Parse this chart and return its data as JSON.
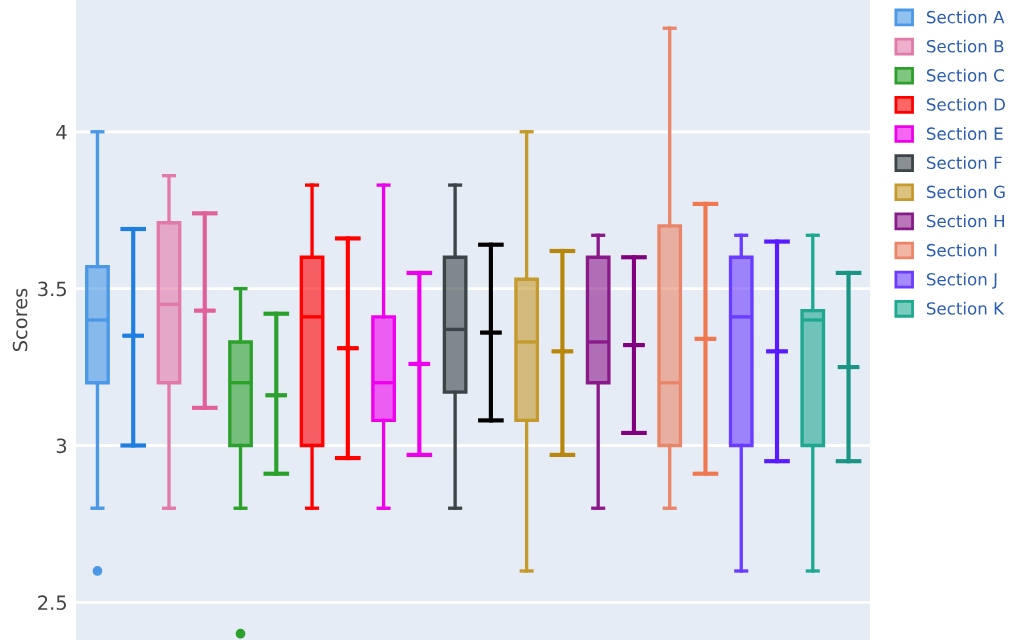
{
  "chart_data": {
    "type": "box",
    "ylabel": "Scores",
    "ylim": [
      2.38,
      4.42
    ],
    "yticks": [
      2.5,
      3,
      3.5,
      4
    ],
    "grid": "y",
    "legend": "top right",
    "categories": [
      null,
      null,
      null,
      null,
      null,
      null,
      null,
      null,
      null,
      null,
      null,
      null,
      null,
      null,
      null,
      null,
      null,
      null,
      null,
      null,
      null,
      null
    ],
    "series": [
      {
        "name": "Section A",
        "color": "#4a98e6",
        "boxes": [
          {
            "low": 2.8,
            "q1": 3.2,
            "median": 3.4,
            "q3": 3.57,
            "high": 4.0,
            "outliers": [
              2.6
            ]
          },
          null,
          null,
          null,
          null,
          null,
          null,
          null,
          null,
          null,
          null,
          null,
          null,
          null,
          null,
          null,
          null,
          null,
          null,
          null,
          null,
          null
        ]
      },
      {
        "color": "#1f7fe0",
        "boxes": [
          null,
          {
            "low": 3.0,
            "q1": 3.35,
            "median": 3.35,
            "q3": 3.35,
            "high": 3.69
          },
          null,
          null,
          null,
          null,
          null,
          null,
          null,
          null,
          null,
          null,
          null,
          null,
          null,
          null,
          null,
          null,
          null,
          null,
          null,
          null
        ]
      },
      {
        "name": "Section B",
        "color": "#e27aa9",
        "boxes": [
          null,
          null,
          {
            "low": 2.8,
            "q1": 3.2,
            "median": 3.45,
            "q3": 3.71,
            "high": 3.86
          },
          null,
          null,
          null,
          null,
          null,
          null,
          null,
          null,
          null,
          null,
          null,
          null,
          null,
          null,
          null,
          null,
          null,
          null,
          null
        ]
      },
      {
        "color": "#e0609a",
        "boxes": [
          null,
          null,
          null,
          {
            "low": 3.12,
            "q1": 3.43,
            "median": 3.43,
            "q3": 3.43,
            "high": 3.74
          },
          null,
          null,
          null,
          null,
          null,
          null,
          null,
          null,
          null,
          null,
          null,
          null,
          null,
          null,
          null,
          null,
          null,
          null
        ]
      },
      {
        "name": "Section C",
        "color": "#2ca02c",
        "boxes": [
          null,
          null,
          null,
          null,
          {
            "low": 2.8,
            "q1": 3.0,
            "median": 3.2,
            "q3": 3.33,
            "high": 3.5,
            "outliers": [
              2.4
            ]
          },
          null,
          null,
          null,
          null,
          null,
          null,
          null,
          null,
          null,
          null,
          null,
          null,
          null,
          null,
          null,
          null,
          null
        ]
      },
      {
        "color": "#2ca02c",
        "boxes": [
          null,
          null,
          null,
          null,
          null,
          {
            "low": 2.91,
            "q1": 3.16,
            "median": 3.16,
            "q3": 3.16,
            "high": 3.42
          },
          null,
          null,
          null,
          null,
          null,
          null,
          null,
          null,
          null,
          null,
          null,
          null,
          null,
          null,
          null,
          null
        ]
      },
      {
        "name": "Section D",
        "color": "#ff0000",
        "boxes": [
          null,
          null,
          null,
          null,
          null,
          null,
          {
            "low": 2.8,
            "q1": 3.0,
            "median": 3.41,
            "q3": 3.6,
            "high": 3.83
          },
          null,
          null,
          null,
          null,
          null,
          null,
          null,
          null,
          null,
          null,
          null,
          null,
          null,
          null,
          null
        ]
      },
      {
        "color": "#ff0000",
        "boxes": [
          null,
          null,
          null,
          null,
          null,
          null,
          null,
          {
            "low": 2.96,
            "q1": 3.31,
            "median": 3.31,
            "q3": 3.31,
            "high": 3.66
          },
          null,
          null,
          null,
          null,
          null,
          null,
          null,
          null,
          null,
          null,
          null,
          null,
          null,
          null
        ]
      },
      {
        "name": "Section E",
        "color": "#ee00ee",
        "boxes": [
          null,
          null,
          null,
          null,
          null,
          null,
          null,
          null,
          {
            "low": 2.8,
            "q1": 3.08,
            "median": 3.2,
            "q3": 3.41,
            "high": 3.83
          },
          null,
          null,
          null,
          null,
          null,
          null,
          null,
          null,
          null,
          null,
          null,
          null,
          null
        ]
      },
      {
        "color": "#ee00ee",
        "boxes": [
          null,
          null,
          null,
          null,
          null,
          null,
          null,
          null,
          null,
          {
            "low": 2.97,
            "q1": 3.26,
            "median": 3.26,
            "q3": 3.26,
            "high": 3.55
          },
          null,
          null,
          null,
          null,
          null,
          null,
          null,
          null,
          null,
          null,
          null,
          null
        ]
      },
      {
        "name": "Section F",
        "color": "#3c4448",
        "boxes": [
          null,
          null,
          null,
          null,
          null,
          null,
          null,
          null,
          null,
          null,
          {
            "low": 2.8,
            "q1": 3.17,
            "median": 3.37,
            "q3": 3.6,
            "high": 3.83
          },
          null,
          null,
          null,
          null,
          null,
          null,
          null,
          null,
          null,
          null,
          null
        ]
      },
      {
        "color": "#000000",
        "boxes": [
          null,
          null,
          null,
          null,
          null,
          null,
          null,
          null,
          null,
          null,
          null,
          {
            "low": 3.08,
            "q1": 3.36,
            "median": 3.36,
            "q3": 3.36,
            "high": 3.64
          },
          null,
          null,
          null,
          null,
          null,
          null,
          null,
          null,
          null,
          null
        ]
      },
      {
        "name": "Section G",
        "color": "#c49a2c",
        "boxes": [
          null,
          null,
          null,
          null,
          null,
          null,
          null,
          null,
          null,
          null,
          null,
          null,
          {
            "low": 2.6,
            "q1": 3.08,
            "median": 3.33,
            "q3": 3.53,
            "high": 4.0
          },
          null,
          null,
          null,
          null,
          null,
          null,
          null,
          null,
          null
        ]
      },
      {
        "color": "#b8860b",
        "boxes": [
          null,
          null,
          null,
          null,
          null,
          null,
          null,
          null,
          null,
          null,
          null,
          null,
          null,
          {
            "low": 2.97,
            "q1": 3.3,
            "median": 3.3,
            "q3": 3.3,
            "high": 3.62
          },
          null,
          null,
          null,
          null,
          null,
          null,
          null,
          null
        ]
      },
      {
        "name": "Section H",
        "color": "#8a1a8a",
        "boxes": [
          null,
          null,
          null,
          null,
          null,
          null,
          null,
          null,
          null,
          null,
          null,
          null,
          null,
          null,
          {
            "low": 2.8,
            "q1": 3.2,
            "median": 3.33,
            "q3": 3.6,
            "high": 3.67
          },
          null,
          null,
          null,
          null,
          null,
          null,
          null
        ]
      },
      {
        "color": "#800080",
        "boxes": [
          null,
          null,
          null,
          null,
          null,
          null,
          null,
          null,
          null,
          null,
          null,
          null,
          null,
          null,
          null,
          {
            "low": 3.04,
            "q1": 3.32,
            "median": 3.32,
            "q3": 3.32,
            "high": 3.6
          },
          null,
          null,
          null,
          null,
          null,
          null
        ]
      },
      {
        "name": "Section I",
        "color": "#e9866a",
        "boxes": [
          null,
          null,
          null,
          null,
          null,
          null,
          null,
          null,
          null,
          null,
          null,
          null,
          null,
          null,
          null,
          null,
          {
            "low": 2.8,
            "q1": 3.0,
            "median": 3.2,
            "q3": 3.7,
            "high": 4.33
          },
          null,
          null,
          null,
          null,
          null
        ]
      },
      {
        "color": "#f07850",
        "boxes": [
          null,
          null,
          null,
          null,
          null,
          null,
          null,
          null,
          null,
          null,
          null,
          null,
          null,
          null,
          null,
          null,
          null,
          {
            "low": 2.91,
            "q1": 3.34,
            "median": 3.34,
            "q3": 3.34,
            "high": 3.77
          },
          null,
          null,
          null,
          null
        ]
      },
      {
        "name": "Section J",
        "color": "#6a3cff",
        "boxes": [
          null,
          null,
          null,
          null,
          null,
          null,
          null,
          null,
          null,
          null,
          null,
          null,
          null,
          null,
          null,
          null,
          null,
          null,
          {
            "low": 2.6,
            "q1": 3.0,
            "median": 3.41,
            "q3": 3.6,
            "high": 3.67
          },
          null,
          null,
          null
        ]
      },
      {
        "color": "#5a1aff",
        "boxes": [
          null,
          null,
          null,
          null,
          null,
          null,
          null,
          null,
          null,
          null,
          null,
          null,
          null,
          null,
          null,
          null,
          null,
          null,
          null,
          {
            "low": 2.95,
            "q1": 3.3,
            "median": 3.3,
            "q3": 3.3,
            "high": 3.65
          },
          null,
          null
        ]
      },
      {
        "name": "Section K",
        "color": "#1fa890",
        "boxes": [
          null,
          null,
          null,
          null,
          null,
          null,
          null,
          null,
          null,
          null,
          null,
          null,
          null,
          null,
          null,
          null,
          null,
          null,
          null,
          null,
          {
            "low": 2.6,
            "q1": 3.0,
            "median": 3.4,
            "q3": 3.43,
            "high": 3.67
          },
          null
        ]
      },
      {
        "color": "#1a9483",
        "boxes": [
          null,
          null,
          null,
          null,
          null,
          null,
          null,
          null,
          null,
          null,
          null,
          null,
          null,
          null,
          null,
          null,
          null,
          null,
          null,
          null,
          null,
          {
            "low": 2.95,
            "q1": 3.25,
            "median": 3.25,
            "q3": 3.25,
            "high": 3.55
          }
        ]
      }
    ]
  }
}
